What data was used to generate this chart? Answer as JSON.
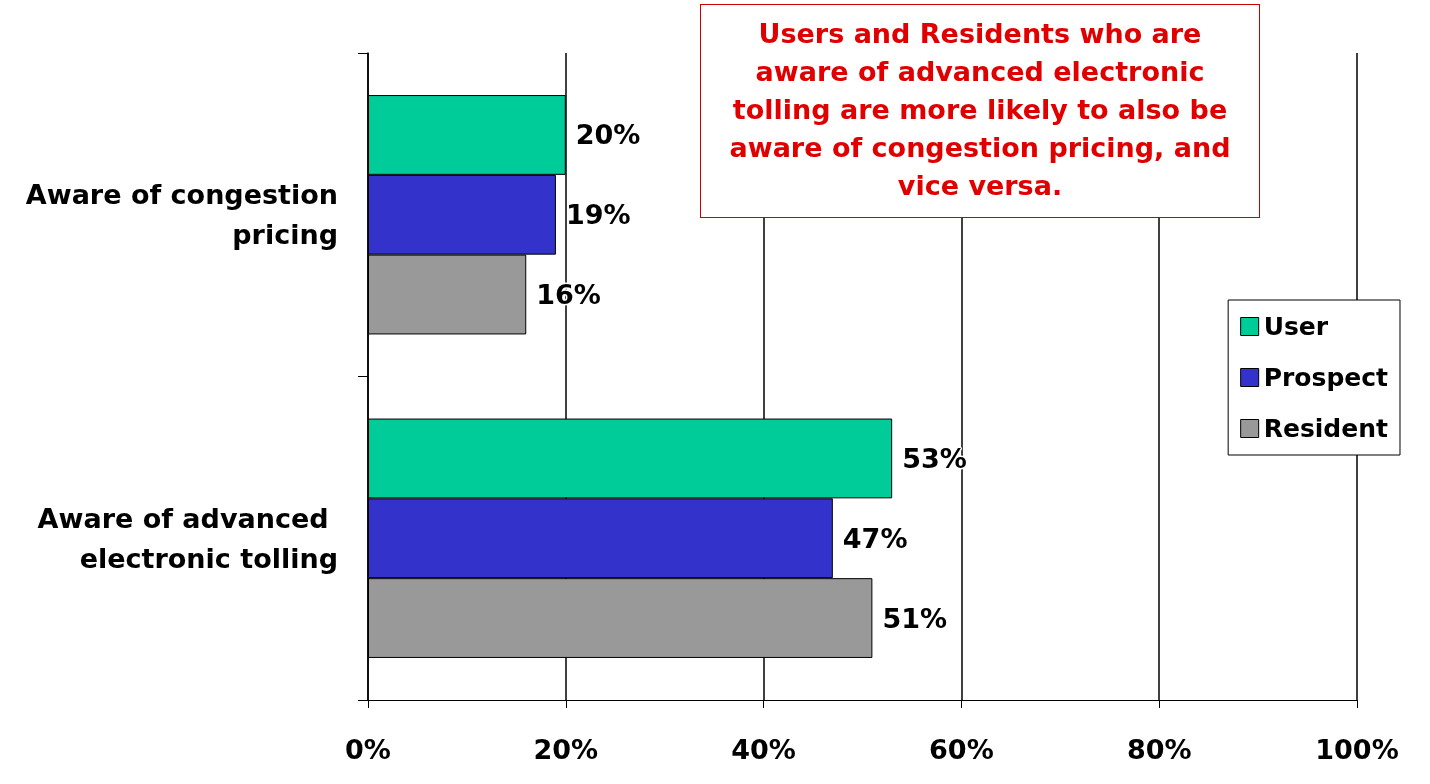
{
  "chart_data": {
    "type": "bar",
    "orientation": "horizontal",
    "categories": [
      "Aware of congestion pricing",
      "Aware of advanced electronic tolling"
    ],
    "series": [
      {
        "name": "User",
        "color": "#00cc99",
        "values": [
          20,
          53
        ],
        "value_labels": [
          "20%",
          "53%"
        ]
      },
      {
        "name": "Prospect",
        "color": "#3333cc",
        "values": [
          19,
          47
        ],
        "value_labels": [
          "19%",
          "47%"
        ]
      },
      {
        "name": "Resident",
        "color": "#999999",
        "values": [
          16,
          51
        ],
        "value_labels": [
          "16%",
          "51%"
        ]
      }
    ],
    "xlim": [
      0,
      100
    ],
    "xticks": [
      {
        "value": 0,
        "label": "0%"
      },
      {
        "value": 20,
        "label": "20%"
      },
      {
        "value": 40,
        "label": "40%"
      },
      {
        "value": 60,
        "label": "60%"
      },
      {
        "value": 80,
        "label": "80%"
      },
      {
        "value": 100,
        "label": "100%"
      }
    ],
    "grid": "x",
    "legend": "right",
    "annotations": [
      "Users and Residents who are aware of advanced electronic tolling are more likely to also be aware of congestion pricing, and vice versa."
    ]
  }
}
